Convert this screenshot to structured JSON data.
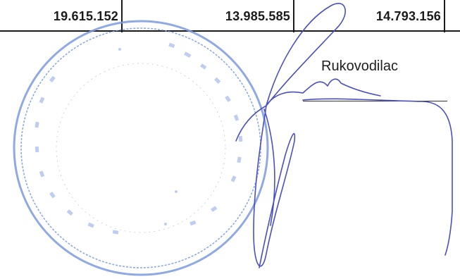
{
  "table": {
    "cells": [
      {
        "value": "19.615.152"
      },
      {
        "value": "13.985.585"
      },
      {
        "value": "14.793.156"
      }
    ]
  },
  "signature": {
    "label": "Rukovodilac"
  },
  "stamp": {
    "color": "#6f8fd8",
    "description_ink": "blue"
  },
  "colors": {
    "text": "#1b1b1b",
    "signature_ink": "#4a4fc0",
    "stamp_ink": "#7b9be0"
  }
}
